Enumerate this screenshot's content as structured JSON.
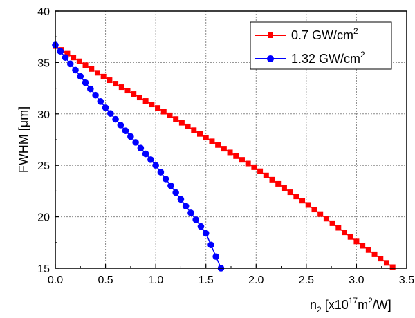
{
  "chart_data": {
    "type": "scatter",
    "xlabel": "n2 [x10^17 m^2/W]",
    "ylabel": "FWHM [μm]",
    "xlim": [
      0.0,
      3.5
    ],
    "ylim": [
      15,
      40
    ],
    "xticks": [
      "0.0",
      "0.5",
      "1.0",
      "1.5",
      "2.0",
      "2.5",
      "3.0",
      "3.5"
    ],
    "yticks": [
      "15",
      "20",
      "25",
      "30",
      "35",
      "40"
    ],
    "grid": true,
    "legend_position": "top-right",
    "series": [
      {
        "name": "0.7 GW/cm2",
        "color": "#ff0000",
        "marker": "square",
        "x_start": 0.0,
        "x_end": 3.36,
        "x_step": 0.06,
        "x": [
          0.0,
          0.5,
          1.0,
          1.5,
          2.0,
          2.5,
          3.0,
          3.36
        ],
        "y": [
          36.6,
          33.5,
          30.7,
          27.7,
          24.7,
          21.3,
          17.6,
          15.1
        ]
      },
      {
        "name": "1.32 GW/cm2",
        "color": "#0000ff",
        "marker": "circle",
        "x_start": 0.0,
        "x_end": 1.65,
        "x_step": 0.05,
        "x": [
          0.0,
          0.5,
          1.0,
          1.5,
          1.65
        ],
        "y": [
          36.7,
          30.6,
          25.0,
          18.4,
          15.0
        ]
      }
    ]
  },
  "labels": {
    "ylabel_main": "FWHM [",
    "ylabel_mu": "μ",
    "ylabel_end": "m]",
    "xlabel_main": "n",
    "xlabel_sub": "2",
    "xlabel_rest": " [x10",
    "xlabel_exp": "17",
    "xlabel_mid": "m",
    "xlabel_exp2": "2",
    "xlabel_end": "/W]",
    "legend1_main": "0.7 GW/cm",
    "legend1_sup": "2",
    "legend2_main": "1.32 GW/cm",
    "legend2_sup": "2"
  }
}
